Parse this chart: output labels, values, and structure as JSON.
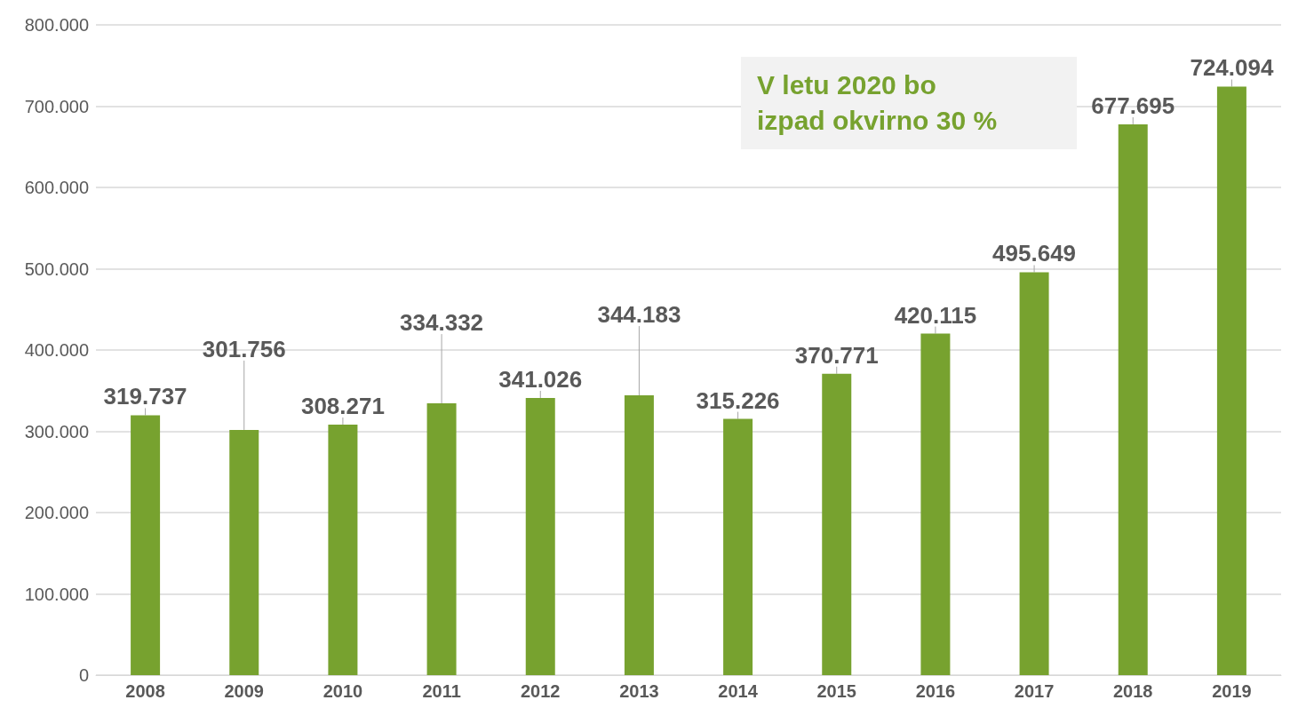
{
  "chart_data": {
    "type": "bar",
    "categories": [
      "2008",
      "2009",
      "2010",
      "2011",
      "2012",
      "2013",
      "2014",
      "2015",
      "2016",
      "2017",
      "2018",
      "2019"
    ],
    "values": [
      319737,
      301756,
      308271,
      334332,
      341026,
      344183,
      315226,
      370771,
      420115,
      495649,
      677695,
      724094
    ],
    "value_labels": [
      "319.737",
      "301.756",
      "308.271",
      "334.332",
      "341.026",
      "344.183",
      "315.226",
      "370.771",
      "420.115",
      "495.649",
      "677.695",
      "724.094"
    ],
    "color": "#77a22f",
    "ylim": [
      0,
      800000
    ],
    "yticks": [
      {
        "value": 0,
        "label": "0"
      },
      {
        "value": 100000,
        "label": "100.000"
      },
      {
        "value": 200000,
        "label": "200.000"
      },
      {
        "value": 300000,
        "label": "300.000"
      },
      {
        "value": 400000,
        "label": "400.000"
      },
      {
        "value": 500000,
        "label": "500.000"
      },
      {
        "value": 600000,
        "label": "600.000"
      },
      {
        "value": 700000,
        "label": "700.000"
      },
      {
        "value": 800000,
        "label": "800.000"
      }
    ],
    "grid": "y",
    "annotations": [
      "V letu 2020 bo\nizpad okvirno 30 %"
    ]
  }
}
